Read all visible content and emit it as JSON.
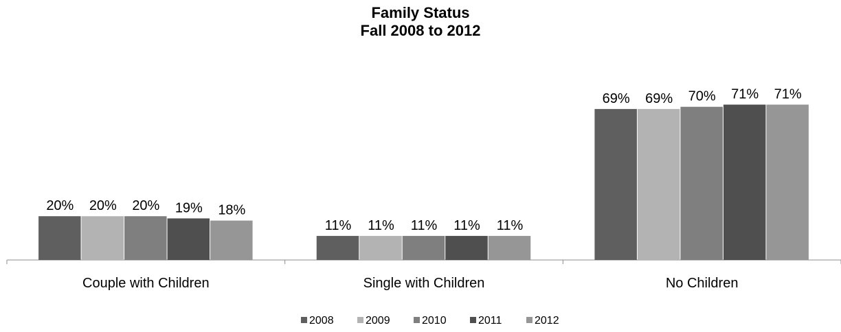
{
  "chart_data": {
    "type": "bar",
    "title": [
      "Family Status",
      "Fall 2008 to 2012"
    ],
    "categories": [
      "Couple with Children",
      "Single with Children",
      "No Children"
    ],
    "series": [
      {
        "name": "2008",
        "values": [
          20,
          11,
          69
        ],
        "labels": [
          "20%",
          "11%",
          "69%"
        ],
        "color": "#5f5f5f"
      },
      {
        "name": "2009",
        "values": [
          20,
          11,
          69
        ],
        "labels": [
          "20%",
          "11%",
          "69%"
        ],
        "color": "#b3b3b3"
      },
      {
        "name": "2010",
        "values": [
          20,
          11,
          70
        ],
        "labels": [
          "20%",
          "11%",
          "70%"
        ],
        "color": "#7f7f7f"
      },
      {
        "name": "2011",
        "values": [
          19,
          11,
          71
        ],
        "labels": [
          "19%",
          "11%",
          "71%"
        ],
        "color": "#4f4f4f"
      },
      {
        "name": "2012",
        "values": [
          18,
          11,
          71
        ],
        "labels": [
          "18%",
          "11%",
          "71%"
        ],
        "color": "#969696"
      }
    ],
    "ylim": [
      0,
      100
    ],
    "grid": false,
    "legend": "bottom-center",
    "data_labels": true
  }
}
